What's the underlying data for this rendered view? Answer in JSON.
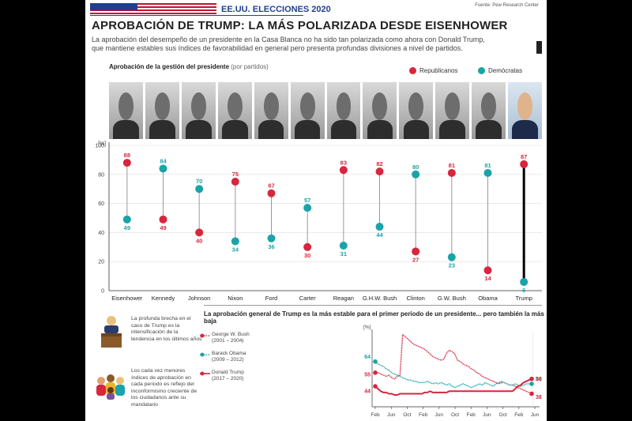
{
  "header": {
    "kicker": "EE.UU. ELECCIONES 2020",
    "source": "Fuente: Pew Research Center",
    "title_part1": "APROBACIÓN DE TRUMP:",
    "title_part2": "LA MÁS POLARIZADA DESDE EISENHOWER",
    "deck_line1": "La aprobación del desempeño de un presidente en la Casa Blanca no ha sido tan polarizada como ahora con Donald Trump,",
    "deck_line2": "que mantiene estables sus índices de favorabilidad en general pero presenta profundas divisiones a nivel de partidos."
  },
  "colors": {
    "republican": "#d7263d",
    "democrat": "#1aa3a8",
    "trump_line": "#000000"
  },
  "section1": {
    "title": "Aprobación de la gestión del presidente",
    "subtitle": "(por partidos)",
    "legend_rep": "Republicanos",
    "legend_dem": "Demócratas"
  },
  "portraits": [
    "Eisenhower",
    "Kennedy",
    "Johnson",
    "Nixon",
    "Ford",
    "Carter",
    "Reagan",
    "G.H.W. Bush",
    "Clinton",
    "G.W. Bush",
    "Obama",
    "Trump"
  ],
  "chart_data": [
    {
      "type": "scatter",
      "title": "Aprobación de la gestión del presidente",
      "subtitle": "(por partidos)",
      "ylabel": "[%]",
      "ylim": [
        0,
        100
      ],
      "yticks": [
        0,
        20,
        40,
        60,
        80,
        100
      ],
      "categories": [
        "Eisenhower",
        "Kennedy",
        "Johnson",
        "Nixon",
        "Ford",
        "Carter",
        "Reagan",
        "G.H.W. Bush",
        "Clinton",
        "G.W. Bush",
        "Obama",
        "Trump"
      ],
      "series": [
        {
          "name": "Republicanos",
          "values": [
            88,
            49,
            40,
            75,
            67,
            30,
            83,
            82,
            27,
            81,
            14,
            87
          ]
        },
        {
          "name": "Demócratas",
          "values": [
            49,
            84,
            70,
            34,
            36,
            57,
            31,
            44,
            80,
            23,
            81,
            6
          ]
        }
      ]
    },
    {
      "type": "line",
      "title": "La aprobación general de Trump es la más estable para el primer periodo de un presidente... pero también la más baja",
      "ylabel": "[%]",
      "x_ticks": [
        "Feb",
        "Jun",
        "Oct",
        "Feb",
        "Jun",
        "Oct",
        "Feb",
        "Jun",
        "Oct",
        "Feb",
        "Jun"
      ],
      "series": [
        {
          "name": "George W. Bush",
          "period": "(2001 – 2004)",
          "start_label": "55",
          "end_label": "38",
          "values": [
            55,
            55,
            54,
            53,
            52,
            53,
            51,
            50,
            52,
            53,
            86,
            84,
            82,
            80,
            78,
            77,
            76,
            75,
            74,
            72,
            70,
            68,
            67,
            66,
            65,
            66,
            71,
            73,
            72,
            70,
            65,
            64,
            62,
            61,
            60,
            58,
            57,
            55,
            54,
            52,
            51,
            50,
            49,
            48,
            47,
            46,
            47,
            47,
            46,
            45,
            45,
            44,
            43,
            42,
            41,
            40,
            39,
            38
          ]
        },
        {
          "name": "Barack Obama",
          "period": "(2009 – 2012)",
          "start_label": "64",
          "end_label": "46",
          "values": [
            64,
            62,
            61,
            60,
            58,
            57,
            55,
            54,
            53,
            52,
            51,
            50,
            49,
            49,
            48,
            48,
            47,
            47,
            47,
            48,
            47,
            46,
            47,
            46,
            47,
            46,
            45,
            46,
            44,
            43,
            44,
            45,
            46,
            45,
            44,
            43,
            44,
            45,
            46,
            45,
            47,
            46,
            45,
            44,
            46,
            47,
            48,
            47,
            46,
            45,
            45,
            46,
            45,
            44,
            45,
            46,
            46,
            46
          ]
        },
        {
          "name": "Donald Trump",
          "period": "(2017 – 2020)",
          "start_label": "44",
          "end_label": "50",
          "values": [
            44,
            42,
            40,
            39,
            39,
            38,
            38,
            37,
            37,
            38,
            38,
            38,
            38,
            38,
            38,
            38,
            38,
            38,
            39,
            39,
            40,
            39,
            39,
            39,
            39,
            39,
            39,
            40,
            40,
            40,
            40,
            40,
            40,
            40,
            40,
            40,
            40,
            40,
            40,
            40,
            40,
            40,
            40,
            40,
            40,
            40,
            40,
            40,
            40,
            40,
            40,
            42,
            44,
            45,
            47,
            48,
            49,
            50
          ]
        }
      ]
    }
  ],
  "section2": {
    "title": "La aprobación general de Trump es la más estable para el primer periodo de un presidente... pero también la más baja"
  },
  "info": {
    "item1": "La profunda brecha en el caso de Trump es la intensificación de la tendencia en los últimos años",
    "item2": "Los cada vez menores índices de aprobación en cada periodo es reflejo del inconformismo creciente de los ciudadanos ante su mandatario"
  }
}
